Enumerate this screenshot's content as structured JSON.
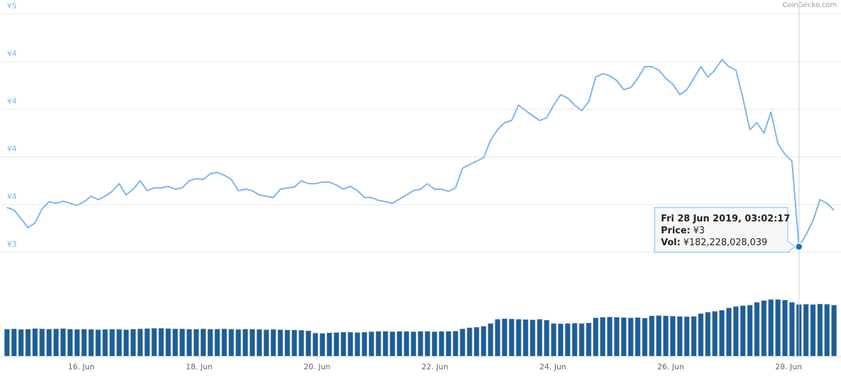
{
  "chart_data": {
    "type": "line",
    "watermark": "CoinGecko.com",
    "color": "#7cb5ec",
    "values": [
      3.635,
      3.621,
      3.576,
      3.529,
      3.554,
      3.628,
      3.665,
      3.657,
      3.668,
      3.657,
      3.646,
      3.665,
      3.694,
      3.676,
      3.694,
      3.72,
      3.76,
      3.701,
      3.731,
      3.775,
      3.723,
      3.738,
      3.738,
      3.746,
      3.731,
      3.738,
      3.775,
      3.786,
      3.782,
      3.812,
      3.819,
      3.804,
      3.782,
      3.723,
      3.731,
      3.723,
      3.701,
      3.694,
      3.687,
      3.731,
      3.738,
      3.742,
      3.775,
      3.76,
      3.76,
      3.768,
      3.768,
      3.753,
      3.731,
      3.746,
      3.723,
      3.687,
      3.687,
      3.672,
      3.665,
      3.657,
      3.679,
      3.701,
      3.723,
      3.731,
      3.76,
      3.731,
      3.731,
      3.72,
      3.738,
      3.841,
      3.86,
      3.878,
      3.896,
      3.988,
      4.043,
      4.08,
      4.091,
      4.172,
      4.143,
      4.117,
      4.091,
      4.106,
      4.172,
      4.227,
      4.209,
      4.172,
      4.143,
      4.19,
      4.319,
      4.337,
      4.326,
      4.301,
      4.253,
      4.264,
      4.312,
      4.374,
      4.374,
      4.356,
      4.312,
      4.282,
      4.227,
      4.253,
      4.312,
      4.374,
      4.319,
      4.356,
      4.411,
      4.374,
      4.356,
      4.209,
      4.043,
      4.08,
      4.025,
      4.135,
      3.97,
      3.915,
      3.878,
      3.429,
      3.492,
      3.565,
      3.676,
      3.657,
      3.621
    ],
    "volume_color": "#1f5e95",
    "volume_ylim": [
      0,
      330000000000.0
    ],
    "volume_values": [
      95000000000.0,
      96000000000.0,
      94000000000.0,
      95000000000.0,
      97000000000.0,
      96000000000.0,
      95000000000.0,
      96000000000.0,
      97000000000.0,
      95000000000.0,
      94000000000.0,
      95000000000.0,
      94000000000.0,
      93000000000.0,
      94000000000.0,
      95000000000.0,
      94000000000.0,
      93000000000.0,
      95000000000.0,
      96000000000.0,
      97000000000.0,
      98000000000.0,
      98000000000.0,
      97000000000.0,
      96000000000.0,
      96000000000.0,
      95000000000.0,
      95000000000.0,
      96000000000.0,
      95000000000.0,
      95000000000.0,
      96000000000.0,
      95000000000.0,
      94000000000.0,
      95000000000.0,
      95000000000.0,
      94000000000.0,
      93000000000.0,
      94000000000.0,
      93000000000.0,
      92000000000.0,
      92000000000.0,
      91000000000.0,
      89000000000.0,
      81000000000.0,
      80000000000.0,
      82000000000.0,
      83000000000.0,
      84000000000.0,
      84000000000.0,
      83000000000.0,
      84000000000.0,
      86000000000.0,
      87000000000.0,
      87000000000.0,
      86000000000.0,
      87000000000.0,
      87000000000.0,
      86000000000.0,
      87000000000.0,
      87000000000.0,
      86000000000.0,
      87000000000.0,
      87000000000.0,
      88000000000.0,
      96000000000.0,
      100000000000.0,
      102000000000.0,
      105000000000.0,
      115000000000.0,
      130000000000.0,
      132000000000.0,
      131000000000.0,
      130000000000.0,
      129000000000.0,
      128000000000.0,
      130000000000.0,
      127000000000.0,
      115000000000.0,
      114000000000.0,
      115000000000.0,
      116000000000.0,
      115000000000.0,
      117000000000.0,
      135000000000.0,
      137000000000.0,
      138000000000.0,
      137000000000.0,
      136000000000.0,
      135000000000.0,
      136000000000.0,
      134000000000.0,
      142000000000.0,
      143000000000.0,
      142000000000.0,
      141000000000.0,
      140000000000.0,
      139000000000.0,
      140000000000.0,
      150000000000.0,
      155000000000.0,
      158000000000.0,
      162000000000.0,
      170000000000.0,
      175000000000.0,
      178000000000.0,
      180000000000.0,
      190000000000.0,
      196000000000.0,
      200000000000.0,
      200000000000.0,
      198000000000.0,
      190000000000.0,
      182228028039,
      183000000000.0,
      182000000000.0,
      184000000000.0,
      183000000000.0,
      180000000000.0
    ],
    "ylim": [
      3.4,
      4.65
    ],
    "yticks": [
      {
        "value": 3.4,
        "label": "¥3"
      },
      {
        "value": 3.65,
        "label": "¥4"
      },
      {
        "value": 3.9,
        "label": "¥4"
      },
      {
        "value": 4.15,
        "label": "¥4"
      },
      {
        "value": 4.4,
        "label": "¥4"
      },
      {
        "value": 4.65,
        "label": "¥5"
      }
    ],
    "xlim": [
      14.74,
      28.77
    ],
    "xticks": [
      {
        "value": 16,
        "label": "16. Jun"
      },
      {
        "value": 18,
        "label": "18. Jun"
      },
      {
        "value": 20,
        "label": "20. Jun"
      },
      {
        "value": 22,
        "label": "22. Jun"
      },
      {
        "value": 24,
        "label": "24. Jun"
      },
      {
        "value": 26,
        "label": "26. Jun"
      },
      {
        "value": 28,
        "label": "28. Jun"
      }
    ],
    "grid": true,
    "tooltip": {
      "index": 113,
      "date": "Fri 28 Jun 2019, 03:02:17",
      "price_label": "Price:",
      "price": "¥3",
      "vol_label": "Vol:",
      "vol": "¥182,228,028,039"
    }
  }
}
